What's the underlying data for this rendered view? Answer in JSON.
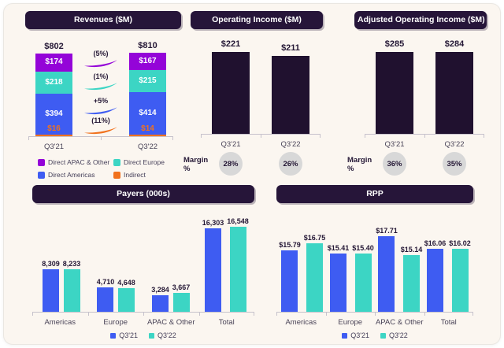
{
  "theme": {
    "title_bg": "#261539",
    "panel_bg": "#fbf6f0",
    "badge_bg": "#d8d8d8",
    "text": "#241735",
    "axis": "#c6c2cc"
  },
  "chart_data": [
    {
      "type": "bar",
      "variant": "stacked",
      "title": "Revenues ($M)",
      "categories": [
        "Q3'21",
        "Q3'22"
      ],
      "totals": [
        802,
        810
      ],
      "total_labels": [
        "$802",
        "$810"
      ],
      "series": [
        {
          "name": "Direct APAC & Other",
          "color": "#9404d8",
          "values": [
            174,
            167
          ],
          "labels": [
            "$174",
            "$167"
          ]
        },
        {
          "name": "Direct Europe",
          "color": "#3cd5c4",
          "values": [
            218,
            215
          ],
          "labels": [
            "$218",
            "$215"
          ]
        },
        {
          "name": "Direct Americas",
          "color": "#3e5cf2",
          "values": [
            394,
            414
          ],
          "labels": [
            "$394",
            "$414"
          ]
        },
        {
          "name": "Indirect",
          "color": "#f1721e",
          "values": [
            16,
            14
          ],
          "labels": [
            "$16",
            "$14"
          ]
        }
      ],
      "change_annotations": [
        {
          "series": "Direct APAC & Other",
          "label": "(5%)",
          "color": "#9404d8"
        },
        {
          "series": "Direct Europe",
          "label": "(1%)",
          "color": "#3cd5c4"
        },
        {
          "series": "Direct Americas",
          "label": "+5%",
          "color": "#3e5cf2"
        },
        {
          "series": "Indirect",
          "label": "(11%)",
          "color": "#f1721e"
        }
      ],
      "legend_position": "bottom",
      "ylim": [
        0,
        810
      ],
      "grid": false
    },
    {
      "type": "bar",
      "title": "Operating Income ($M)",
      "categories": [
        "Q3'21",
        "Q3'22"
      ],
      "values": [
        221,
        211
      ],
      "labels": [
        "$221",
        "$211"
      ],
      "bar_color": "#20112f",
      "margin_label": "Margin %",
      "margins": [
        "28%",
        "26%"
      ],
      "ylim": [
        0,
        221
      ],
      "grid": false
    },
    {
      "type": "bar",
      "title": "Adjusted Operating Income ($M)",
      "categories": [
        "Q3'21",
        "Q3'22"
      ],
      "values": [
        285,
        284
      ],
      "labels": [
        "$285",
        "$284"
      ],
      "bar_color": "#20112f",
      "margin_label": "Margin %",
      "margins": [
        "36%",
        "35%"
      ],
      "ylim": [
        0,
        285
      ],
      "grid": false
    },
    {
      "type": "bar",
      "variant": "grouped",
      "title": "Payers (000s)",
      "categories": [
        "Americas",
        "Europe",
        "APAC & Other",
        "Total"
      ],
      "series": [
        {
          "name": "Q3'21",
          "color": "#3e5cf2",
          "values": [
            8309,
            4710,
            3284,
            16303
          ],
          "labels": [
            "8,309",
            "4,710",
            "3,284",
            "16,303"
          ]
        },
        {
          "name": "Q3'22",
          "color": "#3cd5c4",
          "values": [
            8233,
            4648,
            3667,
            16548
          ],
          "labels": [
            "8,233",
            "4,648",
            "3,667",
            "16,548"
          ]
        }
      ],
      "legend_position": "bottom",
      "ylim": [
        0,
        16548
      ],
      "grid": false
    },
    {
      "type": "bar",
      "variant": "grouped",
      "title": "RPP",
      "categories": [
        "Americas",
        "Europe",
        "APAC & Other",
        "Total"
      ],
      "series": [
        {
          "name": "Q3'21",
          "color": "#3e5cf2",
          "values": [
            15.79,
            15.41,
            17.71,
            16.06
          ],
          "labels": [
            "$15.79",
            "$15.41",
            "$17.71",
            "$16.06"
          ]
        },
        {
          "name": "Q3'22",
          "color": "#3cd5c4",
          "values": [
            16.75,
            15.4,
            15.14,
            16.02
          ],
          "labels": [
            "$16.75",
            "$15.40",
            "$15.14",
            "$16.02"
          ]
        }
      ],
      "legend_position": "bottom",
      "ylim": [
        7.5,
        17.71
      ],
      "grid": false
    }
  ]
}
